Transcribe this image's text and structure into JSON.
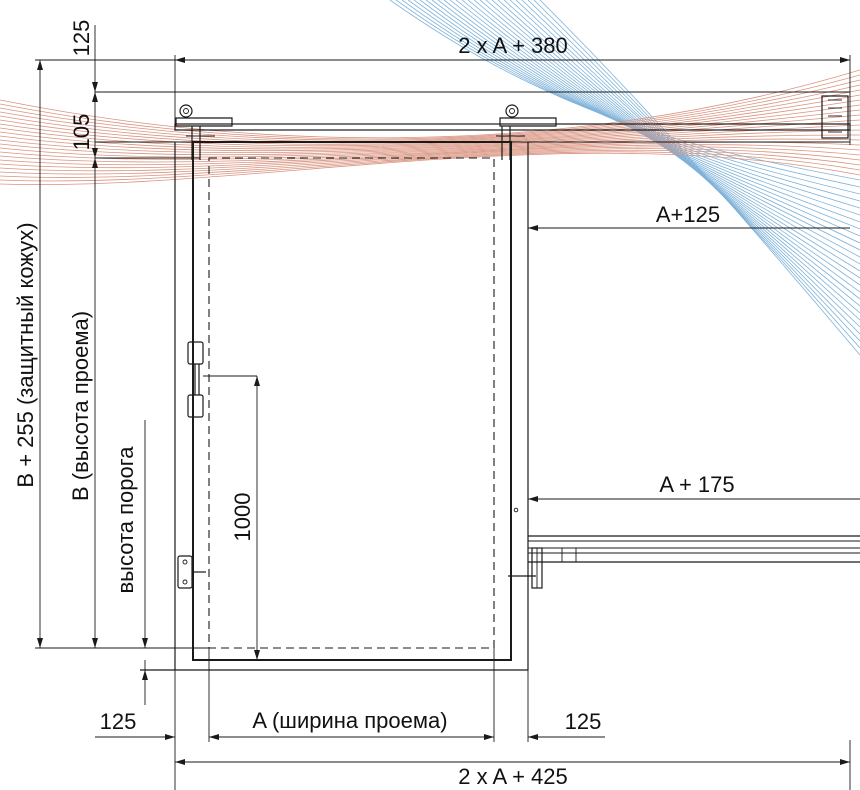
{
  "drawing": {
    "labels": {
      "top_total": "2 x A + 380",
      "bottom_total": "2 x A + 425",
      "right_upper": "A+125",
      "right_lower": "A + 175",
      "bottom_left_margin": "125",
      "bottom_right_margin": "125",
      "opening_width": "A (ширина проема)",
      "top_gap": "125",
      "header_height": "105",
      "cover_height": "B + 255 (защитный кожух)",
      "opening_height": "B (высота проема)",
      "threshold_height": "высота порога",
      "handle_height": "1000"
    },
    "colors": {
      "line": "#1a1a1a",
      "moire_blue": "#7fb2d9",
      "moire_red": "#d9937f",
      "background": "#ffffff"
    }
  }
}
